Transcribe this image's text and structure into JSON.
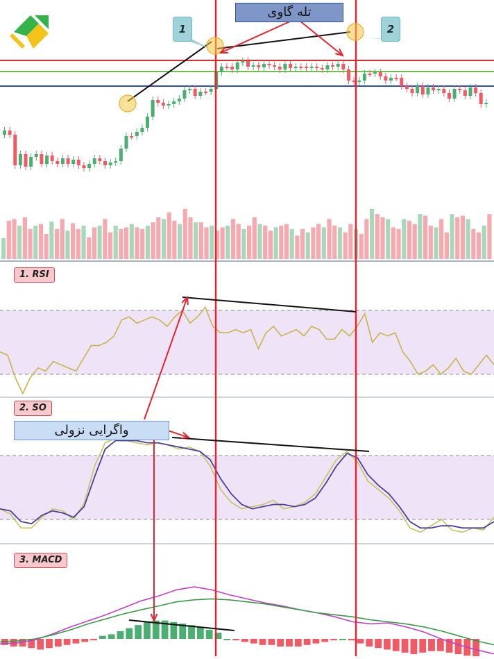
{
  "annotations": {
    "bull_trap_label": "تله گاوی",
    "bearish_divergence_label": "واگرایی نزولی",
    "point_1": "1",
    "point_2": "2"
  },
  "panels": {
    "rsi_label": "1. RSI",
    "so_label": "2. SO",
    "macd_label": "3. MACD"
  },
  "colors": {
    "bull_candle": "#4caf72",
    "bear_candle": "#ef5a64",
    "bull_volume": "#a8d8b9",
    "bear_volume": "#f7a9b0",
    "resistance_red": "#e02a2a",
    "support_green": "#6fbf4f",
    "support_blue": "#2f4fa8",
    "rsi_line": "#c8b44a",
    "so_fast": "#c6c35a",
    "so_slow": "#4a3fa0",
    "macd_line": "#c23ec9",
    "signal_line": "#3a9a4a",
    "band_fill": "#efe3f7",
    "annotation_red": "#e8232d",
    "trend_black": "#111111",
    "logo_green": "#35b34a",
    "logo_yellow": "#f3c318"
  },
  "chart_data": [
    {
      "type": "candlestick",
      "title": "",
      "closes": [
        188,
        194,
        238,
        222,
        240,
        226,
        222,
        236,
        224,
        232,
        236,
        228,
        236,
        230,
        238,
        242,
        236,
        228,
        232,
        238,
        234,
        232,
        214,
        196,
        196,
        190,
        184,
        168,
        144,
        148,
        152,
        150,
        146,
        142,
        130,
        128,
        138,
        132,
        132,
        128,
        104,
        96,
        96,
        100,
        90,
        88,
        96,
        94,
        97,
        92,
        94,
        96,
        100,
        92,
        98,
        96,
        96,
        98,
        96,
        98,
        100,
        94,
        96,
        92,
        100,
        116,
        118,
        116,
        106,
        106,
        104,
        110,
        116,
        112,
        112,
        124,
        128,
        134,
        124,
        136,
        126,
        130,
        128,
        134,
        142,
        128,
        130,
        138,
        126,
        134,
        150,
        148
      ],
      "volume": [
        25,
        46,
        48,
        40,
        50,
        36,
        40,
        42,
        30,
        45,
        36,
        48,
        34,
        43,
        36,
        40,
        26,
        38,
        40,
        48,
        32,
        40,
        36,
        38,
        42,
        38,
        36,
        40,
        44,
        50,
        48,
        56,
        46,
        42,
        60,
        50,
        44,
        44,
        38,
        40,
        34,
        38,
        40,
        48,
        42,
        36,
        40,
        50,
        42,
        40,
        34,
        38,
        40,
        42,
        36,
        28,
        36,
        32,
        38,
        42,
        38,
        48,
        40,
        38,
        32,
        42,
        36,
        30,
        48,
        60,
        54,
        50,
        48,
        38,
        36,
        48,
        46,
        42,
        54,
        52,
        40,
        38,
        48,
        32,
        54,
        50,
        52,
        48,
        36,
        32,
        40,
        54
      ]
    },
    {
      "type": "line",
      "title": "1. RSI",
      "overbought": 70,
      "oversold": 30,
      "values": [
        44,
        42,
        28,
        18,
        28,
        34,
        32,
        38,
        36,
        34,
        32,
        40,
        48,
        48,
        50,
        54,
        64,
        66,
        62,
        64,
        66,
        64,
        60,
        66,
        70,
        62,
        66,
        72,
        60,
        56,
        56,
        58,
        56,
        58,
        46,
        56,
        60,
        54,
        56,
        58,
        54,
        60,
        58,
        52,
        52,
        58,
        54,
        60,
        68,
        50,
        56,
        54,
        56,
        44,
        38,
        30,
        32,
        36,
        30,
        34,
        40,
        32,
        30,
        36,
        42,
        36
      ]
    },
    {
      "type": "line",
      "title": "2. SO",
      "overbought": 80,
      "oversold": 20,
      "fast": [
        30,
        25,
        12,
        12,
        22,
        30,
        28,
        20,
        35,
        70,
        92,
        96,
        94,
        92,
        90,
        92,
        90,
        86,
        88,
        84,
        70,
        48,
        36,
        30,
        32,
        34,
        38,
        30,
        32,
        36,
        44,
        60,
        76,
        84,
        74,
        56,
        48,
        40,
        28,
        12,
        8,
        14,
        20,
        10,
        8,
        12,
        10,
        22
      ],
      "slow": [
        30,
        28,
        18,
        16,
        24,
        28,
        26,
        22,
        32,
        60,
        86,
        94,
        94,
        94,
        92,
        92,
        90,
        88,
        86,
        84,
        76,
        58,
        44,
        34,
        30,
        32,
        34,
        34,
        32,
        34,
        40,
        54,
        70,
        82,
        78,
        62,
        52,
        44,
        32,
        18,
        12,
        12,
        14,
        14,
        12,
        12,
        12,
        18
      ]
    },
    {
      "type": "bar",
      "title": "3. MACD",
      "histogram": [
        -4,
        -5,
        -5,
        -6,
        -7,
        -6,
        -5,
        -4,
        -3,
        -2,
        -1,
        2,
        3,
        5,
        7,
        9,
        11,
        12,
        12,
        11,
        10,
        9,
        8,
        6,
        4,
        0,
        -1,
        -2,
        -3,
        -4,
        -4,
        -5,
        -5,
        -5,
        -4,
        -3,
        -2,
        -1,
        0,
        -1,
        -3,
        -5,
        -6,
        -7,
        -8,
        -9,
        -10,
        -9,
        -8,
        -8,
        -9,
        -10,
        -11,
        -12
      ],
      "macd": [
        -10,
        -8,
        -2,
        10,
        24,
        36,
        48,
        62,
        76,
        86,
        98,
        104,
        98,
        88,
        80,
        72,
        66,
        58,
        52,
        44,
        34,
        30,
        32,
        24,
        14,
        0,
        -12,
        -22,
        -30
      ],
      "signal": [
        -6,
        -4,
        0,
        8,
        18,
        30,
        40,
        50,
        58,
        66,
        74,
        78,
        80,
        78,
        74,
        70,
        64,
        58,
        52,
        48,
        44,
        38,
        34,
        30,
        24,
        16,
        6,
        -4,
        -12
      ]
    }
  ]
}
